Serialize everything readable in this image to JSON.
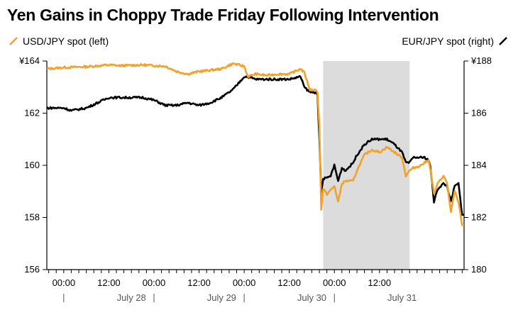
{
  "title": "Yen Gains in Choppy Trade Friday Following Intervention",
  "colors": {
    "usd": "#f5a02a",
    "eur": "#000000",
    "shade": "#dcdcdc"
  },
  "chart_data": {
    "type": "line",
    "title": "Yen Gains in Choppy Trade Friday Following Intervention",
    "y_left": {
      "ticks": [
        "¥164",
        "162",
        "160",
        "158",
        "156"
      ],
      "values": [
        164,
        162,
        160,
        158,
        156
      ],
      "range": [
        156,
        164
      ]
    },
    "y_right": {
      "ticks": [
        "¥188",
        "186",
        "184",
        "182",
        "180"
      ],
      "values": [
        188,
        186,
        184,
        182,
        180
      ],
      "range": [
        180,
        188
      ]
    },
    "x_range_hours": [
      -9,
      135
    ],
    "x_time_labels": [
      {
        "h": 0,
        "label": "00:00"
      },
      {
        "h": 24,
        "label": "12:00"
      },
      {
        "h": 48,
        "label": "00:00"
      },
      {
        "h": 72,
        "label": "12:00"
      },
      {
        "h": 96,
        "label": "00:00"
      },
      {
        "h": 120,
        "label": "12:00"
      },
      {
        "h": 144,
        "label": "00:00"
      },
      {
        "h": 168,
        "label": "12:00"
      }
    ],
    "x_date_labels": [
      {
        "h": 36,
        "label": "July 28"
      },
      {
        "h": 84,
        "label": "July 29"
      },
      {
        "h": 132,
        "label": "July 30"
      },
      {
        "h": 180,
        "label": "July 31"
      }
    ],
    "shaded_range_hours": [
      138,
      184
    ],
    "series": [
      {
        "name": "USD/JPY spot (left)",
        "axis": "left",
        "points": [
          [
            -9,
            163.7
          ],
          [
            0,
            163.75
          ],
          [
            12,
            163.78
          ],
          [
            24,
            163.85
          ],
          [
            30,
            163.82
          ],
          [
            42,
            163.85
          ],
          [
            54,
            163.8
          ],
          [
            60,
            163.6
          ],
          [
            66,
            163.5
          ],
          [
            72,
            163.6
          ],
          [
            84,
            163.7
          ],
          [
            90,
            163.9
          ],
          [
            96,
            163.8
          ],
          [
            98,
            163.4
          ],
          [
            102,
            163.5
          ],
          [
            108,
            163.45
          ],
          [
            114,
            163.5
          ],
          [
            120,
            163.5
          ],
          [
            126,
            163.7
          ],
          [
            128,
            163.55
          ],
          [
            131,
            162.9
          ],
          [
            134,
            162.9
          ],
          [
            135,
            162.8
          ],
          [
            136,
            161.5
          ],
          [
            137,
            158.3
          ],
          [
            138,
            159.1
          ],
          [
            140,
            158.9
          ],
          [
            144,
            159.2
          ],
          [
            146,
            158.6
          ],
          [
            148,
            159.3
          ],
          [
            150,
            159.4
          ],
          [
            154,
            159.4
          ],
          [
            156,
            159.8
          ],
          [
            160,
            160.4
          ],
          [
            164,
            160.6
          ],
          [
            168,
            160.5
          ],
          [
            172,
            160.7
          ],
          [
            176,
            160.5
          ],
          [
            180,
            160.3
          ],
          [
            182,
            159.6
          ],
          [
            184,
            159.8
          ],
          [
            186,
            159.9
          ],
          [
            190,
            160.0
          ],
          [
            192,
            160.1
          ],
          [
            194,
            160.2
          ],
          [
            195,
            159.9
          ],
          [
            197,
            158.9
          ],
          [
            199,
            159.3
          ],
          [
            202,
            159.6
          ],
          [
            204,
            159.3
          ],
          [
            206,
            158.2
          ],
          [
            208,
            159.0
          ],
          [
            210,
            158.6
          ],
          [
            212,
            157.7
          ],
          [
            213,
            157.7
          ]
        ]
      },
      {
        "name": "EUR/JPY spot (right)",
        "axis": "right",
        "points": [
          [
            -9,
            186.2
          ],
          [
            0,
            186.2
          ],
          [
            4,
            186.1
          ],
          [
            12,
            186.2
          ],
          [
            18,
            186.4
          ],
          [
            24,
            186.6
          ],
          [
            30,
            186.6
          ],
          [
            42,
            186.6
          ],
          [
            48,
            186.5
          ],
          [
            54,
            186.3
          ],
          [
            60,
            186.3
          ],
          [
            66,
            186.4
          ],
          [
            72,
            186.3
          ],
          [
            78,
            186.4
          ],
          [
            84,
            186.6
          ],
          [
            90,
            186.9
          ],
          [
            96,
            187.4
          ],
          [
            98,
            187.4
          ],
          [
            102,
            187.3
          ],
          [
            108,
            187.3
          ],
          [
            114,
            187.3
          ],
          [
            120,
            187.3
          ],
          [
            126,
            187.4
          ],
          [
            128,
            187.0
          ],
          [
            131,
            186.8
          ],
          [
            134,
            186.8
          ],
          [
            135,
            186.7
          ],
          [
            136,
            185.0
          ],
          [
            137,
            182.9
          ],
          [
            138,
            183.5
          ],
          [
            140,
            183.5
          ],
          [
            142,
            183.6
          ],
          [
            144,
            184.0
          ],
          [
            146,
            183.4
          ],
          [
            148,
            183.9
          ],
          [
            150,
            183.8
          ],
          [
            154,
            184.1
          ],
          [
            156,
            184.4
          ],
          [
            160,
            184.8
          ],
          [
            164,
            185.0
          ],
          [
            168,
            185.0
          ],
          [
            172,
            185.0
          ],
          [
            176,
            184.8
          ],
          [
            180,
            184.5
          ],
          [
            182,
            184.1
          ],
          [
            184,
            184.1
          ],
          [
            186,
            184.3
          ],
          [
            190,
            184.3
          ],
          [
            192,
            184.3
          ],
          [
            194,
            184.2
          ],
          [
            195,
            184.0
          ],
          [
            197,
            182.6
          ],
          [
            199,
            183.1
          ],
          [
            202,
            183.3
          ],
          [
            204,
            183.2
          ],
          [
            206,
            182.6
          ],
          [
            208,
            183.2
          ],
          [
            210,
            183.3
          ],
          [
            212,
            182.1
          ],
          [
            213,
            182.1
          ]
        ]
      }
    ],
    "legend": [
      {
        "label": "USD/JPY spot (left)",
        "placement": "top-left"
      },
      {
        "label": "EUR/JPY spot (right)",
        "placement": "top-right"
      }
    ]
  }
}
